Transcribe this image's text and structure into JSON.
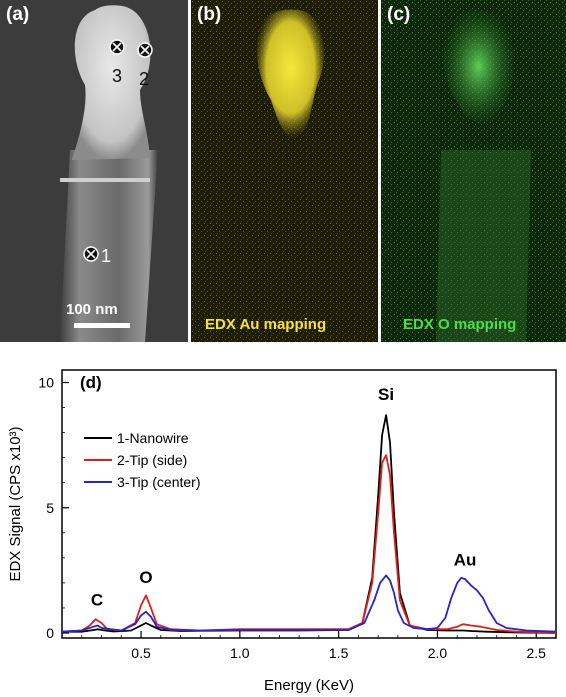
{
  "panels": {
    "a": {
      "label": "(a)",
      "points": [
        "3",
        "2",
        "1"
      ],
      "scale_bar": "100 nm"
    },
    "b": {
      "label": "(b)",
      "caption": "EDX Au mapping",
      "color": "#f5e23a"
    },
    "c": {
      "label": "(c)",
      "caption": "EDX O mapping",
      "color": "#4fdc4a"
    }
  },
  "chart_data": {
    "type": "line",
    "panel_label": "(d)",
    "xlabel": "Energy (KeV)",
    "ylabel": "EDX Signal (CPS x10³)",
    "xlim": [
      0.1,
      2.6
    ],
    "ylim": [
      -0.2,
      10.5
    ],
    "xticks": [
      0.5,
      1.0,
      1.5,
      2.0,
      2.5
    ],
    "xtick_labels": [
      "0.5",
      "1.0",
      "1.5",
      "2.0",
      "2.5"
    ],
    "yticks": [
      0,
      5,
      10
    ],
    "ytick_labels": [
      "0",
      "5",
      "10"
    ],
    "legend_position": "center-left",
    "peak_labels": [
      {
        "text": "C",
        "x": 0.277,
        "y": 1.1
      },
      {
        "text": "O",
        "x": 0.525,
        "y": 2.0
      },
      {
        "text": "Si",
        "x": 1.74,
        "y": 9.3
      },
      {
        "text": "Au",
        "x": 2.14,
        "y": 2.7
      }
    ],
    "series": [
      {
        "name": "1-Nanowire",
        "color": "#000000",
        "x": [
          0.1,
          0.2,
          0.26,
          0.28,
          0.3,
          0.36,
          0.45,
          0.5,
          0.525,
          0.55,
          0.6,
          0.7,
          1.0,
          1.3,
          1.55,
          1.62,
          1.67,
          1.7,
          1.72,
          1.74,
          1.76,
          1.78,
          1.81,
          1.86,
          1.95,
          2.05,
          2.1,
          2.13,
          2.17,
          2.25,
          2.4,
          2.6
        ],
        "y": [
          0.05,
          0.05,
          0.12,
          0.15,
          0.12,
          0.06,
          0.1,
          0.3,
          0.4,
          0.3,
          0.12,
          0.08,
          0.1,
          0.1,
          0.12,
          0.4,
          2.2,
          5.5,
          7.9,
          8.7,
          7.6,
          4.8,
          1.6,
          0.3,
          0.12,
          0.1,
          0.1,
          0.1,
          0.08,
          0.05,
          0.02,
          0.0
        ]
      },
      {
        "name": "2-Tip (side)",
        "color": "#e01e1e",
        "x": [
          0.1,
          0.2,
          0.24,
          0.27,
          0.3,
          0.33,
          0.4,
          0.47,
          0.5,
          0.525,
          0.55,
          0.58,
          0.65,
          0.8,
          1.0,
          1.3,
          1.55,
          1.62,
          1.67,
          1.7,
          1.72,
          1.74,
          1.76,
          1.78,
          1.81,
          1.86,
          1.95,
          2.05,
          2.1,
          2.13,
          2.17,
          2.22,
          2.3,
          2.4,
          2.6
        ],
        "y": [
          0.05,
          0.1,
          0.3,
          0.55,
          0.4,
          0.15,
          0.1,
          0.4,
          1.1,
          1.5,
          1.0,
          0.35,
          0.15,
          0.1,
          0.15,
          0.15,
          0.15,
          0.4,
          2.0,
          4.8,
          6.8,
          7.1,
          6.3,
          4.0,
          1.3,
          0.3,
          0.15,
          0.15,
          0.25,
          0.35,
          0.3,
          0.25,
          0.12,
          0.05,
          0.0
        ]
      },
      {
        "name": "3-Tip (center)",
        "color": "#2426c8",
        "x": [
          0.1,
          0.2,
          0.26,
          0.28,
          0.3,
          0.4,
          0.47,
          0.5,
          0.525,
          0.55,
          0.58,
          0.65,
          0.8,
          1.0,
          1.3,
          1.55,
          1.63,
          1.68,
          1.71,
          1.74,
          1.76,
          1.78,
          1.8,
          1.83,
          1.88,
          1.95,
          2.0,
          2.04,
          2.07,
          2.1,
          2.12,
          2.14,
          2.17,
          2.2,
          2.23,
          2.26,
          2.3,
          2.35,
          2.45,
          2.6
        ],
        "y": [
          0.05,
          0.1,
          0.25,
          0.3,
          0.2,
          0.1,
          0.35,
          0.7,
          0.85,
          0.65,
          0.25,
          0.12,
          0.1,
          0.12,
          0.12,
          0.12,
          0.4,
          1.3,
          2.0,
          2.3,
          2.1,
          1.6,
          0.9,
          0.4,
          0.2,
          0.15,
          0.2,
          0.6,
          1.4,
          2.0,
          2.2,
          2.15,
          1.9,
          1.7,
          1.4,
          0.9,
          0.4,
          0.2,
          0.1,
          0.05
        ]
      }
    ]
  }
}
